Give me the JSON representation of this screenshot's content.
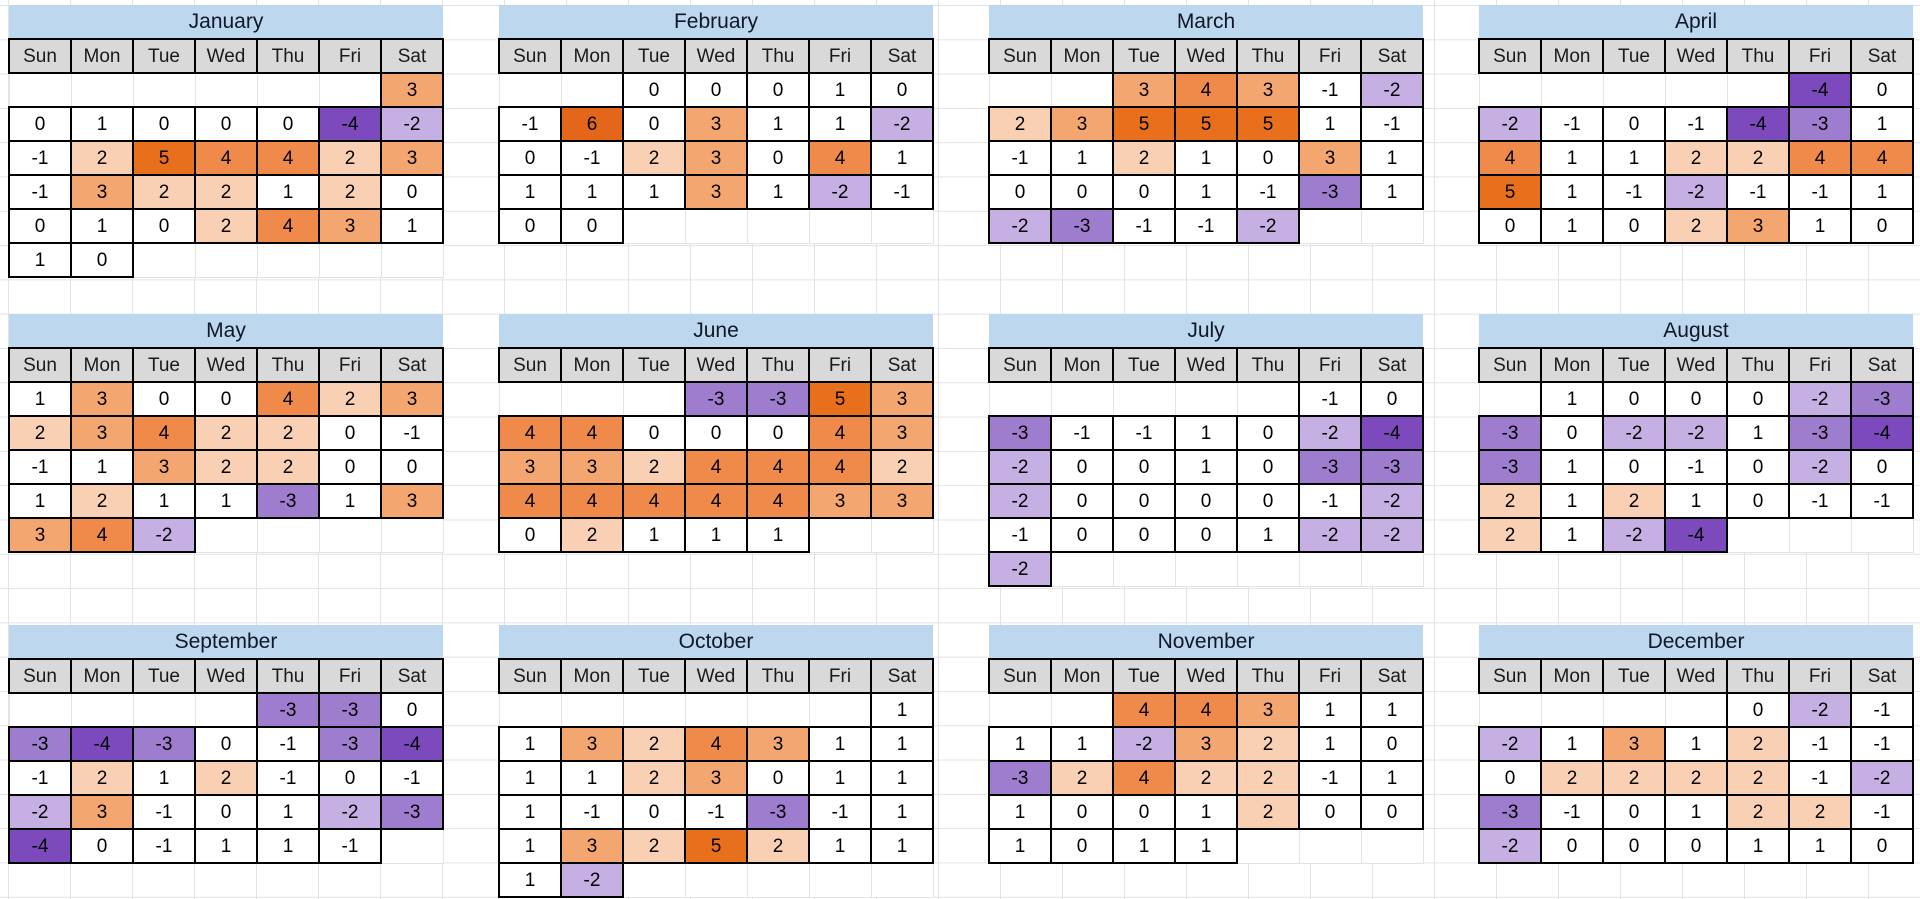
{
  "styles": {
    "title_bg": "#BDD7EE",
    "header_bg": "#D9D9D9",
    "border": "#000000",
    "gridline": "#E3E3E3",
    "text": "#000000"
  },
  "chart_data": {
    "type": "heatmap",
    "title": "Year calendar heatmap, 12 month grids (4 columns x 3 rows), values colored orange (positive) to purple (negative)",
    "legend_position": "none",
    "grid": true,
    "value_range": [
      -4,
      6
    ],
    "weekdays": [
      "Sun",
      "Mon",
      "Tue",
      "Wed",
      "Thu",
      "Fri",
      "Sat"
    ],
    "color_scale": {
      "-4": "#7D4ABD",
      "-3": "#9E7CCE",
      "-2": "#C5AFE3",
      "-1": "#FFFFFF",
      "0": "#FFFFFF",
      "1": "#FFFFFF",
      "2": "#FAD0B5",
      "3": "#F4A671",
      "4": "#EF8A4A",
      "5": "#E8701C",
      "6": "#E4661A"
    },
    "months": [
      {
        "name": "January",
        "weeks": [
          [
            null,
            null,
            null,
            null,
            null,
            null,
            3
          ],
          [
            0,
            1,
            0,
            0,
            0,
            -4,
            -2
          ],
          [
            -1,
            2,
            5,
            4,
            4,
            2,
            3
          ],
          [
            -1,
            3,
            2,
            2,
            1,
            2,
            0
          ],
          [
            0,
            1,
            0,
            2,
            4,
            3,
            1
          ],
          [
            1,
            0,
            null,
            null,
            null,
            null,
            null
          ]
        ]
      },
      {
        "name": "February",
        "weeks": [
          [
            null,
            null,
            0,
            0,
            0,
            1,
            0
          ],
          [
            -1,
            6,
            0,
            3,
            1,
            1,
            -2
          ],
          [
            0,
            -1,
            2,
            3,
            0,
            4,
            1
          ],
          [
            1,
            1,
            1,
            3,
            1,
            -2,
            -1
          ],
          [
            0,
            0,
            null,
            null,
            null,
            null,
            null
          ]
        ]
      },
      {
        "name": "March",
        "weeks": [
          [
            null,
            null,
            3,
            4,
            3,
            -1,
            -2
          ],
          [
            2,
            3,
            5,
            5,
            5,
            1,
            -1
          ],
          [
            -1,
            1,
            2,
            1,
            0,
            3,
            1
          ],
          [
            0,
            0,
            0,
            1,
            -1,
            -3,
            1
          ],
          [
            -2,
            -3,
            -1,
            -1,
            -2,
            null,
            null
          ]
        ]
      },
      {
        "name": "April",
        "weeks": [
          [
            null,
            null,
            null,
            null,
            null,
            -4,
            0
          ],
          [
            -2,
            -1,
            0,
            -1,
            -4,
            -3,
            1
          ],
          [
            4,
            1,
            1,
            2,
            2,
            4,
            4
          ],
          [
            5,
            1,
            -1,
            -2,
            -1,
            -1,
            1
          ],
          [
            0,
            1,
            0,
            2,
            3,
            1,
            0
          ]
        ]
      },
      {
        "name": "May",
        "weeks": [
          [
            1,
            3,
            0,
            0,
            4,
            2,
            3
          ],
          [
            2,
            3,
            4,
            2,
            2,
            0,
            -1
          ],
          [
            -1,
            1,
            3,
            2,
            2,
            0,
            0
          ],
          [
            1,
            2,
            1,
            1,
            -3,
            1,
            3
          ],
          [
            3,
            4,
            -2,
            null,
            null,
            null,
            null
          ]
        ]
      },
      {
        "name": "June",
        "weeks": [
          [
            null,
            null,
            null,
            -3,
            -3,
            5,
            3
          ],
          [
            4,
            4,
            0,
            0,
            0,
            4,
            3
          ],
          [
            3,
            3,
            2,
            4,
            4,
            4,
            2
          ],
          [
            4,
            4,
            4,
            4,
            4,
            3,
            3
          ],
          [
            0,
            2,
            1,
            1,
            1,
            null,
            null
          ]
        ]
      },
      {
        "name": "July",
        "weeks": [
          [
            null,
            null,
            null,
            null,
            null,
            -1,
            0
          ],
          [
            -3,
            -1,
            -1,
            1,
            0,
            -2,
            -4
          ],
          [
            -2,
            0,
            0,
            1,
            0,
            -3,
            -3
          ],
          [
            -2,
            0,
            0,
            0,
            0,
            -1,
            -2
          ],
          [
            -1,
            0,
            0,
            0,
            1,
            -2,
            -2
          ],
          [
            -2,
            null,
            null,
            null,
            null,
            null,
            null
          ]
        ]
      },
      {
        "name": "August",
        "weeks": [
          [
            null,
            1,
            0,
            0,
            0,
            -2,
            -3
          ],
          [
            -3,
            0,
            -2,
            -2,
            1,
            -3,
            -4
          ],
          [
            -3,
            1,
            0,
            -1,
            0,
            -2,
            0
          ],
          [
            2,
            1,
            2,
            1,
            0,
            -1,
            -1
          ],
          [
            2,
            1,
            -2,
            -4,
            null,
            null,
            null
          ]
        ]
      },
      {
        "name": "September",
        "weeks": [
          [
            null,
            null,
            null,
            null,
            -3,
            -3,
            0
          ],
          [
            -3,
            -4,
            -3,
            0,
            -1,
            -3,
            -4
          ],
          [
            -1,
            2,
            1,
            2,
            -1,
            0,
            -1
          ],
          [
            -2,
            3,
            -1,
            0,
            1,
            -2,
            -3
          ],
          [
            -4,
            0,
            -1,
            1,
            1,
            -1,
            null
          ]
        ]
      },
      {
        "name": "October",
        "weeks": [
          [
            null,
            null,
            null,
            null,
            null,
            null,
            1
          ],
          [
            1,
            3,
            2,
            4,
            3,
            1,
            1
          ],
          [
            1,
            1,
            2,
            3,
            0,
            1,
            1
          ],
          [
            1,
            -1,
            0,
            -1,
            -3,
            -1,
            1
          ],
          [
            1,
            3,
            2,
            5,
            2,
            1,
            1
          ],
          [
            1,
            -2,
            null,
            null,
            null,
            null,
            null
          ]
        ]
      },
      {
        "name": "November",
        "weeks": [
          [
            null,
            null,
            4,
            4,
            3,
            1,
            1
          ],
          [
            1,
            1,
            -2,
            3,
            2,
            1,
            0
          ],
          [
            -3,
            2,
            4,
            2,
            2,
            -1,
            1
          ],
          [
            1,
            0,
            0,
            1,
            2,
            0,
            0
          ],
          [
            1,
            0,
            1,
            1,
            null,
            null,
            null
          ]
        ]
      },
      {
        "name": "December",
        "weeks": [
          [
            null,
            null,
            null,
            null,
            0,
            -2,
            -1
          ],
          [
            -2,
            1,
            3,
            1,
            2,
            -1,
            -1
          ],
          [
            0,
            2,
            2,
            2,
            2,
            -1,
            -2
          ],
          [
            -3,
            -1,
            0,
            1,
            2,
            2,
            -1
          ],
          [
            -2,
            0,
            0,
            0,
            1,
            1,
            0
          ]
        ]
      }
    ]
  }
}
